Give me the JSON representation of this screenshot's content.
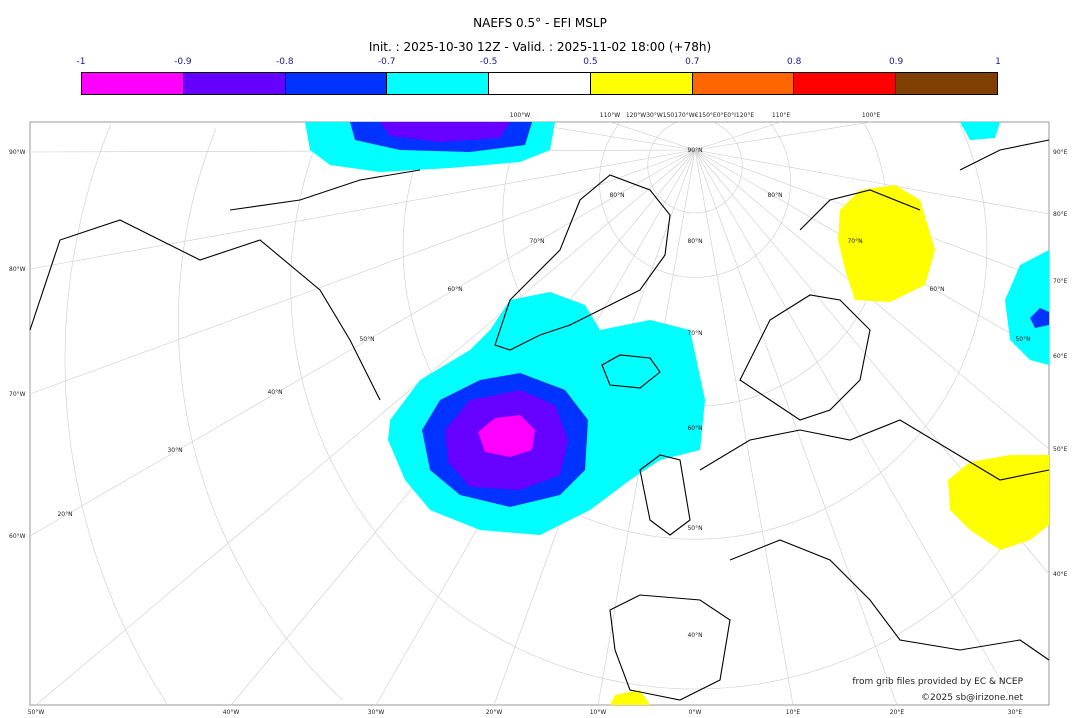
{
  "title": "NAEFS 0.5° - EFI MSLP",
  "subtitle": "Init. : 2025-10-30 12Z - Valid. : 2025-11-02 18:00 (+78h)",
  "colorbar": {
    "ticks": [
      "-1",
      "-0.9",
      "-0.8",
      "-0.7",
      "-0.5",
      "0.5",
      "0.7",
      "0.8",
      "0.9",
      "1"
    ],
    "colors": [
      "#ff00ff",
      "#6600ff",
      "#0033ff",
      "#00ffff",
      "#ffffff",
      "#ffff00",
      "#ff6600",
      "#ff0000",
      "#7f3f00"
    ]
  },
  "labels": {
    "left": [
      "90°W",
      "80°W",
      "70°W",
      "60°W"
    ],
    "right": [
      "90°E",
      "80°E",
      "70°E",
      "60°E",
      "50°E",
      "40°E"
    ],
    "bottom": [
      "50°W",
      "40°W",
      "30°W",
      "20°W",
      "10°W",
      "0°W",
      "10°E",
      "20°E",
      "30°E"
    ],
    "top": [
      "100°W",
      "110°W",
      "120°W30°W150170°W€150°E0°E0°I120°E",
      "110°E",
      "100°E"
    ],
    "lat": [
      "90°N",
      "80°N",
      "80°N",
      "70°N",
      "70°N",
      "60°N",
      "60°N",
      "50°N",
      "50°N",
      "40°N",
      "40°N",
      "30°N",
      "20°N",
      "80°N",
      "70°N",
      "60°N",
      "50°N"
    ]
  },
  "credits": [
    "from grib files provided by EC & NCEP",
    "©2025 sb@irizone.net"
  ]
}
